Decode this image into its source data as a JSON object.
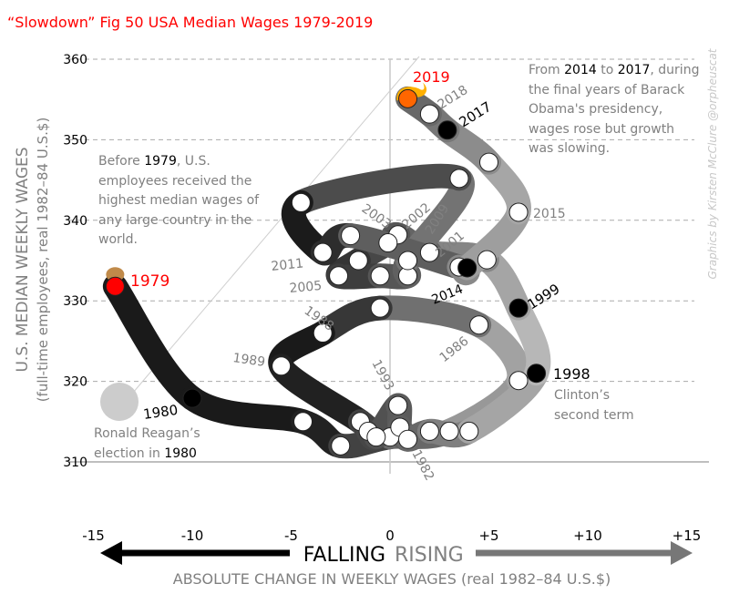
{
  "chart_data": {
    "type": "line",
    "title": "“Slowdown” Fig 50 USA Median Wages 1979-2019",
    "ylabel": "U.S. MEDIAN WEEKLY WAGES",
    "ylabel_sub": "(full-time employees, real 1982–84 U.S.$)",
    "xlabel": "ABSOLUTE CHANGE IN WEEKLY WAGES (real 1982–84 U.S.$)",
    "xlim": [
      -15,
      15
    ],
    "ylim": [
      310,
      360
    ],
    "x_ticks": [
      "-15",
      "-10",
      "-5",
      "0",
      "+5",
      "+10",
      "+15"
    ],
    "x_tick_values": [
      -15,
      -10,
      -5,
      0,
      5,
      10,
      15
    ],
    "y_ticks": [
      310,
      320,
      330,
      340,
      350,
      360
    ],
    "grid": "horizontal dashed",
    "falling_label": "FALLING",
    "rising_label": "RISING",
    "credit": "Graphics by Kirsten McClure @orpheuscat",
    "colors": {
      "title": "#ff0000",
      "band_dark": "#1a1a1a",
      "band_light": "#b5b5b5",
      "highlight_1979": "#ff0000",
      "highlight_2019": "#ff6600",
      "flame": "#ffb000",
      "marked_year": "#000000"
    },
    "series": [
      {
        "points": [
          {
            "year": 1979,
            "x": -13.9,
            "y": 331.8
          },
          {
            "year": 1980,
            "x": -10.0,
            "y": 317.9
          },
          {
            "year": 1981,
            "x": -4.4,
            "y": 315.0
          },
          {
            "year": 1982,
            "x": -2.5,
            "y": 312.0
          },
          {
            "year": 1983,
            "x": 0.0,
            "y": 313.1
          },
          {
            "year": 1984,
            "x": 3.0,
            "y": 313.8
          },
          {
            "year": 1985,
            "x": 6.5,
            "y": 320.1
          },
          {
            "year": 1986,
            "x": 4.5,
            "y": 327.0
          },
          {
            "year": 1987,
            "x": -0.5,
            "y": 329.1
          },
          {
            "year": 1988,
            "x": -3.4,
            "y": 326.0
          },
          {
            "year": 1989,
            "x": -5.5,
            "y": 321.9
          },
          {
            "year": 1990,
            "x": -1.5,
            "y": 315.0
          },
          {
            "year": 1991,
            "x": -1.1,
            "y": 313.8
          },
          {
            "year": 1992,
            "x": -0.7,
            "y": 313.1
          },
          {
            "year": 1993,
            "x": 0.4,
            "y": 317.0
          },
          {
            "year": 1994,
            "x": 0.5,
            "y": 314.3
          },
          {
            "year": 1995,
            "x": 0.9,
            "y": 312.8
          },
          {
            "year": 1996,
            "x": 2.0,
            "y": 313.8
          },
          {
            "year": 1997,
            "x": 4.0,
            "y": 313.8
          },
          {
            "year": 1998,
            "x": 7.4,
            "y": 321.0
          },
          {
            "year": 1999,
            "x": 6.5,
            "y": 329.1
          },
          {
            "year": 2000,
            "x": 4.9,
            "y": 335.1
          },
          {
            "year": 2001,
            "x": 2.0,
            "y": 336.0
          },
          {
            "year": 2002,
            "x": 0.4,
            "y": 338.2
          },
          {
            "year": 2003,
            "x": -0.1,
            "y": 337.2
          },
          {
            "year": 2004,
            "x": -1.6,
            "y": 335.0
          },
          {
            "year": 2005,
            "x": -2.6,
            "y": 333.1
          },
          {
            "year": 2006,
            "x": -0.5,
            "y": 333.1
          },
          {
            "year": 2007,
            "x": 0.9,
            "y": 333.1
          },
          {
            "year": 2008,
            "x": 0.9,
            "y": 335.0
          },
          {
            "year": 2009,
            "x": 3.5,
            "y": 345.2
          },
          {
            "year": 2010,
            "x": -4.5,
            "y": 342.2
          },
          {
            "year": 2011,
            "x": -3.4,
            "y": 336.0
          },
          {
            "year": 2012,
            "x": -2.0,
            "y": 338.1
          },
          {
            "year": 2013,
            "x": 3.5,
            "y": 334.2
          },
          {
            "year": 2014,
            "x": 3.9,
            "y": 334.1
          },
          {
            "year": 2015,
            "x": 6.5,
            "y": 341.0
          },
          {
            "year": 2016,
            "x": 5.0,
            "y": 347.2
          },
          {
            "year": 2017,
            "x": 2.9,
            "y": 351.2
          },
          {
            "year": 2018,
            "x": 2.0,
            "y": 353.2
          },
          {
            "year": 2019,
            "x": 0.9,
            "y": 355.1
          }
        ]
      }
    ],
    "marked_years": [
      1980,
      1998,
      1999,
      2014,
      2017
    ],
    "year_labels": [
      {
        "text": "1979",
        "color": "#ff0000"
      },
      {
        "text": "1980",
        "color": "#000000"
      },
      {
        "text": "1982",
        "color": "#808080"
      },
      {
        "text": "1986",
        "color": "#808080"
      },
      {
        "text": "1988",
        "color": "#808080"
      },
      {
        "text": "1989",
        "color": "#808080"
      },
      {
        "text": "1993",
        "color": "#808080"
      },
      {
        "text": "1998",
        "color": "#000000"
      },
      {
        "text": "1999",
        "color": "#000000"
      },
      {
        "text": "2001",
        "color": "#808080"
      },
      {
        "text": "2002",
        "color": "#808080"
      },
      {
        "text": "2003",
        "color": "#808080"
      },
      {
        "text": "2005",
        "color": "#808080"
      },
      {
        "text": "2009",
        "color": "#808080"
      },
      {
        "text": "2011",
        "color": "#808080"
      },
      {
        "text": "2014",
        "color": "#000000"
      },
      {
        "text": "2015",
        "color": "#808080"
      },
      {
        "text": "2017",
        "color": "#000000"
      },
      {
        "text": "2018",
        "color": "#808080"
      },
      {
        "text": "2019",
        "color": "#ff0000"
      }
    ],
    "annotations": {
      "before_1979": [
        "Before ",
        "1979",
        ", U.S. employees received the highest median wages of any large country in the world."
      ],
      "obama": [
        "From ",
        "2014",
        " to ",
        "2017",
        ", during the final years of Barack Obama's presidency, wages rose but growth was slowing."
      ],
      "clinton": "Clinton’s second term",
      "reagan": [
        "Ronald Reagan’s election in ",
        "1980"
      ]
    }
  }
}
